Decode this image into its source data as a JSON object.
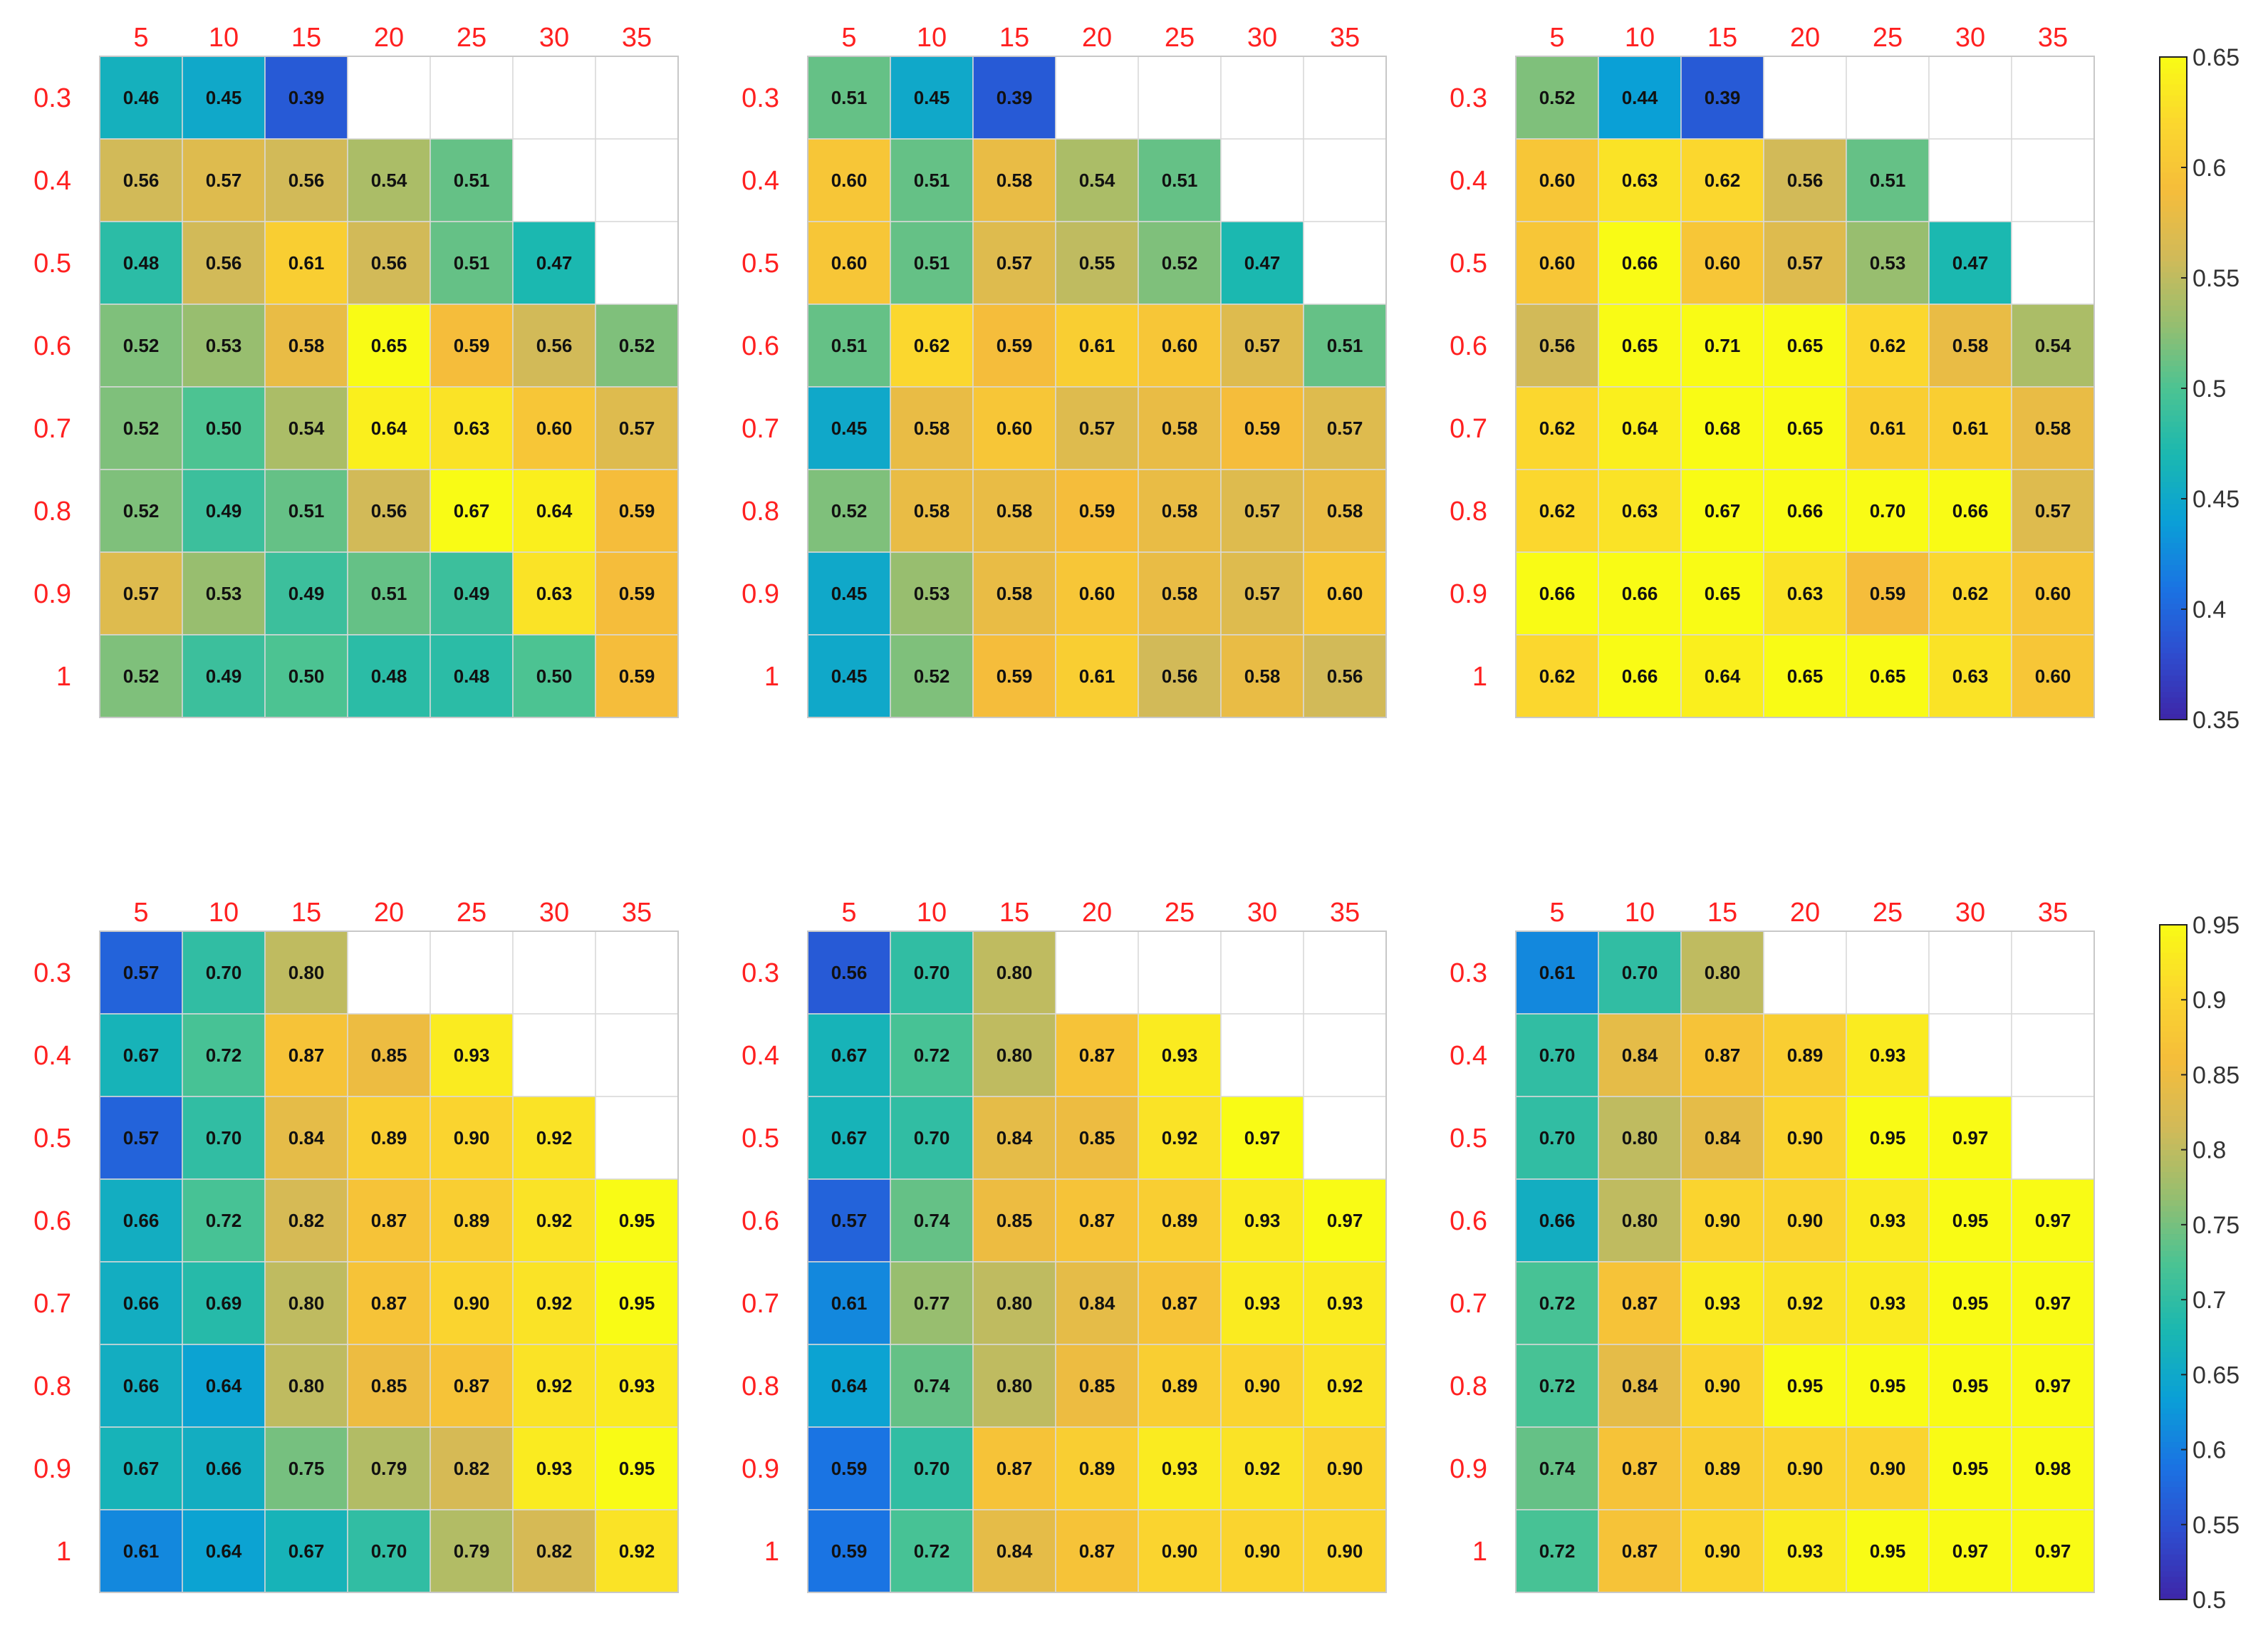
{
  "colormap": [
    "#3e26a8",
    "#2e4dcf",
    "#1a74e3",
    "#0aa0d6",
    "#1bb8b0",
    "#4cc392",
    "#98be6f",
    "#d2ba58",
    "#f5bd3b",
    "#fbd72e",
    "#f9fb15"
  ],
  "empty_cell_color": "#ffffff",
  "tick_color": "#ff2020",
  "chart_data": [
    {
      "type": "heatmap",
      "x_ticks": [
        "5",
        "10",
        "15",
        "20",
        "25",
        "30",
        "35"
      ],
      "y_ticks": [
        "0.3",
        "0.4",
        "0.5",
        "0.6",
        "0.7",
        "0.8",
        "0.9",
        "1"
      ],
      "clim": [
        0.35,
        0.65
      ],
      "values": [
        [
          0.46,
          0.45,
          0.39,
          null,
          null,
          null,
          null
        ],
        [
          0.56,
          0.57,
          0.56,
          0.54,
          0.51,
          null,
          null
        ],
        [
          0.48,
          0.56,
          0.61,
          0.56,
          0.51,
          0.47,
          null
        ],
        [
          0.52,
          0.53,
          0.58,
          0.65,
          0.59,
          0.56,
          0.52
        ],
        [
          0.52,
          0.5,
          0.54,
          0.64,
          0.63,
          0.6,
          0.57
        ],
        [
          0.52,
          0.49,
          0.51,
          0.56,
          0.67,
          0.64,
          0.59
        ],
        [
          0.57,
          0.53,
          0.49,
          0.51,
          0.49,
          0.63,
          0.59
        ],
        [
          0.52,
          0.49,
          0.5,
          0.48,
          0.48,
          0.5,
          0.59
        ]
      ]
    },
    {
      "type": "heatmap",
      "x_ticks": [
        "5",
        "10",
        "15",
        "20",
        "25",
        "30",
        "35"
      ],
      "y_ticks": [
        "0.3",
        "0.4",
        "0.5",
        "0.6",
        "0.7",
        "0.8",
        "0.9",
        "1"
      ],
      "clim": [
        0.35,
        0.65
      ],
      "values": [
        [
          0.51,
          0.45,
          0.39,
          null,
          null,
          null,
          null
        ],
        [
          0.6,
          0.51,
          0.58,
          0.54,
          0.51,
          null,
          null
        ],
        [
          0.6,
          0.51,
          0.57,
          0.55,
          0.52,
          0.47,
          null
        ],
        [
          0.51,
          0.62,
          0.59,
          0.61,
          0.6,
          0.57,
          0.51
        ],
        [
          0.45,
          0.58,
          0.6,
          0.57,
          0.58,
          0.59,
          0.57
        ],
        [
          0.52,
          0.58,
          0.58,
          0.59,
          0.58,
          0.57,
          0.58
        ],
        [
          0.45,
          0.53,
          0.58,
          0.6,
          0.58,
          0.57,
          0.6
        ],
        [
          0.45,
          0.52,
          0.59,
          0.61,
          0.56,
          0.58,
          0.56
        ]
      ]
    },
    {
      "type": "heatmap",
      "x_ticks": [
        "5",
        "10",
        "15",
        "20",
        "25",
        "30",
        "35"
      ],
      "y_ticks": [
        "0.3",
        "0.4",
        "0.5",
        "0.6",
        "0.7",
        "0.8",
        "0.9",
        "1"
      ],
      "clim": [
        0.35,
        0.65
      ],
      "values": [
        [
          0.52,
          0.44,
          0.39,
          null,
          null,
          null,
          null
        ],
        [
          0.6,
          0.63,
          0.62,
          0.56,
          0.51,
          null,
          null
        ],
        [
          0.6,
          0.66,
          0.6,
          0.57,
          0.53,
          0.47,
          null
        ],
        [
          0.56,
          0.65,
          0.71,
          0.65,
          0.62,
          0.58,
          0.54
        ],
        [
          0.62,
          0.64,
          0.68,
          0.65,
          0.61,
          0.61,
          0.58
        ],
        [
          0.62,
          0.63,
          0.67,
          0.66,
          0.7,
          0.66,
          0.57
        ],
        [
          0.66,
          0.66,
          0.65,
          0.63,
          0.59,
          0.62,
          0.6
        ],
        [
          0.62,
          0.66,
          0.64,
          0.65,
          0.65,
          0.63,
          0.6
        ]
      ],
      "colorbar_ticks": [
        "0.35",
        "0.4",
        "0.45",
        "0.5",
        "0.55",
        "0.6",
        "0.65"
      ]
    },
    {
      "type": "heatmap",
      "x_ticks": [
        "5",
        "10",
        "15",
        "20",
        "25",
        "30",
        "35"
      ],
      "y_ticks": [
        "0.3",
        "0.4",
        "0.5",
        "0.6",
        "0.7",
        "0.8",
        "0.9",
        "1"
      ],
      "clim": [
        0.5,
        0.95
      ],
      "values": [
        [
          0.57,
          0.7,
          0.8,
          null,
          null,
          null,
          null
        ],
        [
          0.67,
          0.72,
          0.87,
          0.85,
          0.93,
          null,
          null
        ],
        [
          0.57,
          0.7,
          0.84,
          0.89,
          0.9,
          0.92,
          null
        ],
        [
          0.66,
          0.72,
          0.82,
          0.87,
          0.89,
          0.92,
          0.95
        ],
        [
          0.66,
          0.69,
          0.8,
          0.87,
          0.9,
          0.92,
          0.95
        ],
        [
          0.66,
          0.64,
          0.8,
          0.85,
          0.87,
          0.92,
          0.93
        ],
        [
          0.67,
          0.66,
          0.75,
          0.79,
          0.82,
          0.93,
          0.95
        ],
        [
          0.61,
          0.64,
          0.67,
          0.7,
          0.79,
          0.82,
          0.92
        ]
      ]
    },
    {
      "type": "heatmap",
      "x_ticks": [
        "5",
        "10",
        "15",
        "20",
        "25",
        "30",
        "35"
      ],
      "y_ticks": [
        "0.3",
        "0.4",
        "0.5",
        "0.6",
        "0.7",
        "0.8",
        "0.9",
        "1"
      ],
      "clim": [
        0.5,
        0.95
      ],
      "values": [
        [
          0.56,
          0.7,
          0.8,
          null,
          null,
          null,
          null
        ],
        [
          0.67,
          0.72,
          0.8,
          0.87,
          0.93,
          null,
          null
        ],
        [
          0.67,
          0.7,
          0.84,
          0.85,
          0.92,
          0.97,
          null
        ],
        [
          0.57,
          0.74,
          0.85,
          0.87,
          0.89,
          0.93,
          0.97
        ],
        [
          0.61,
          0.77,
          0.8,
          0.84,
          0.87,
          0.93,
          0.93
        ],
        [
          0.64,
          0.74,
          0.8,
          0.85,
          0.89,
          0.9,
          0.92
        ],
        [
          0.59,
          0.7,
          0.87,
          0.89,
          0.93,
          0.92,
          0.9
        ],
        [
          0.59,
          0.72,
          0.84,
          0.87,
          0.9,
          0.9,
          0.9
        ]
      ]
    },
    {
      "type": "heatmap",
      "x_ticks": [
        "5",
        "10",
        "15",
        "20",
        "25",
        "30",
        "35"
      ],
      "y_ticks": [
        "0.3",
        "0.4",
        "0.5",
        "0.6",
        "0.7",
        "0.8",
        "0.9",
        "1"
      ],
      "clim": [
        0.5,
        0.95
      ],
      "values": [
        [
          0.61,
          0.7,
          0.8,
          null,
          null,
          null,
          null
        ],
        [
          0.7,
          0.84,
          0.87,
          0.89,
          0.93,
          null,
          null
        ],
        [
          0.7,
          0.8,
          0.84,
          0.9,
          0.95,
          0.97,
          null
        ],
        [
          0.66,
          0.8,
          0.9,
          0.9,
          0.93,
          0.95,
          0.97
        ],
        [
          0.72,
          0.87,
          0.93,
          0.92,
          0.93,
          0.95,
          0.97
        ],
        [
          0.72,
          0.84,
          0.9,
          0.95,
          0.95,
          0.95,
          0.97
        ],
        [
          0.74,
          0.87,
          0.89,
          0.9,
          0.9,
          0.95,
          0.98
        ],
        [
          0.72,
          0.87,
          0.9,
          0.93,
          0.95,
          0.97,
          0.97
        ]
      ],
      "colorbar_ticks": [
        "0.5",
        "0.55",
        "0.6",
        "0.65",
        "0.7",
        "0.75",
        "0.8",
        "0.85",
        "0.9",
        "0.95"
      ]
    }
  ]
}
